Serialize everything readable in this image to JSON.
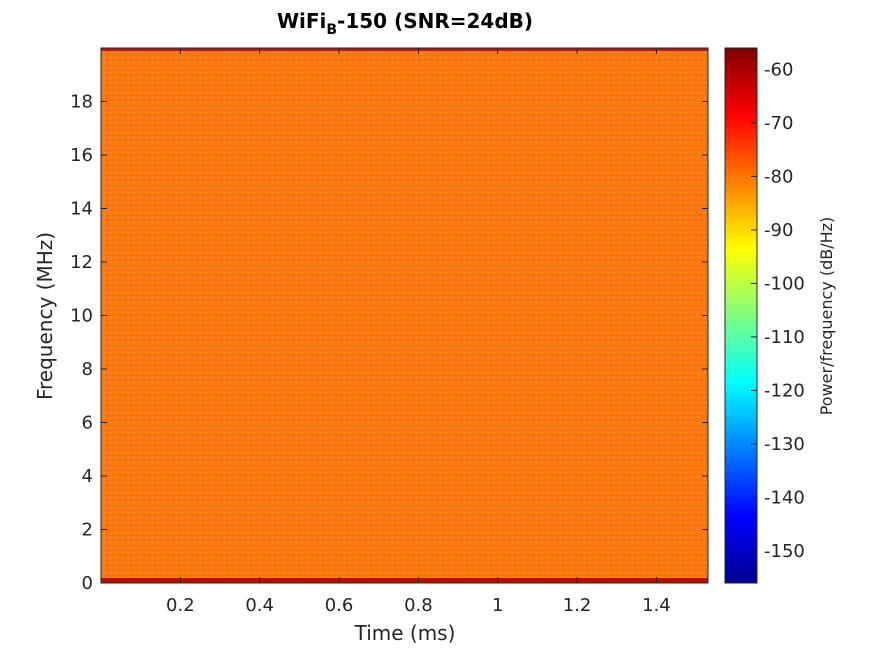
{
  "chart_data": {
    "type": "heatmap",
    "title": {
      "prefix": "WiFi",
      "subscript": "B",
      "suffix": "-150 (SNR=24dB)"
    },
    "xlabel": "Time (ms)",
    "ylabel": "Frequency (MHz)",
    "xlim": [
      0,
      1.53
    ],
    "ylim": [
      0,
      20
    ],
    "xticks": [
      0.2,
      0.4,
      0.6,
      0.8,
      1,
      1.2,
      1.4
    ],
    "xtick_labels": [
      "0.2",
      "0.4",
      "0.6",
      "0.8",
      "1",
      "1.2",
      "1.4"
    ],
    "yticks": [
      0,
      2,
      4,
      6,
      8,
      10,
      12,
      14,
      16,
      18
    ],
    "ytick_labels": [
      "0",
      "2",
      "4",
      "6",
      "8",
      "10",
      "12",
      "14",
      "16",
      "18"
    ],
    "colorbar": {
      "label": "Power/frequency (dB/Hz)",
      "colormap": "jet",
      "range": [
        -156,
        -56
      ],
      "ticks": [
        -60,
        -70,
        -80,
        -90,
        -100,
        -110,
        -120,
        -130,
        -140,
        -150
      ],
      "tick_labels": [
        "-60",
        "-70",
        "-80",
        "-90",
        "-100",
        "-110",
        "-120",
        "-130",
        "-140",
        "-150"
      ]
    },
    "dominant_level_db": -78,
    "band_edge_level_db": -60
  }
}
